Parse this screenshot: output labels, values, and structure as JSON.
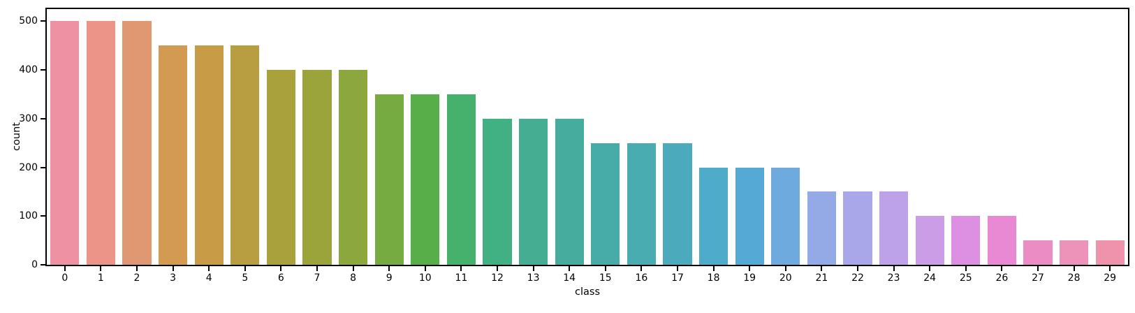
{
  "figure": {
    "background": "#ffffff",
    "spine_color": "#000000",
    "tick_color": "#000000"
  },
  "chart_data": {
    "type": "bar",
    "title": "",
    "xlabel": "class",
    "ylabel": "count",
    "categories": [
      "0",
      "1",
      "2",
      "3",
      "4",
      "5",
      "6",
      "7",
      "8",
      "9",
      "10",
      "11",
      "12",
      "13",
      "14",
      "15",
      "16",
      "17",
      "18",
      "19",
      "20",
      "21",
      "22",
      "23",
      "24",
      "25",
      "26",
      "27",
      "28",
      "29"
    ],
    "values": [
      500,
      500,
      500,
      450,
      450,
      450,
      400,
      400,
      400,
      350,
      350,
      350,
      300,
      300,
      300,
      250,
      250,
      250,
      200,
      200,
      200,
      150,
      150,
      150,
      100,
      100,
      100,
      50,
      50,
      50
    ],
    "bar_colors": [
      "#ee91a3",
      "#ec9488",
      "#e09873",
      "#d39b51",
      "#c89c47",
      "#b99e41",
      "#a9a13c",
      "#9aa43a",
      "#8ba73e",
      "#76ab41",
      "#58ae48",
      "#46b16c",
      "#41b083",
      "#44ad92",
      "#46ac9e",
      "#47aca7",
      "#48acb0",
      "#4babbc",
      "#4eabc9",
      "#55aad5",
      "#6faade",
      "#93aae6",
      "#aaa6ea",
      "#bda2e9",
      "#cc9de7",
      "#dd8fe1",
      "#e989d3",
      "#ec8cc4",
      "#ed92b8",
      "#ee93ab"
    ],
    "ylim": [
      0,
      525
    ],
    "yticks": [
      0,
      100,
      200,
      300,
      400,
      500
    ],
    "bar_width_fraction": 0.8,
    "grid": false,
    "legend": null
  }
}
